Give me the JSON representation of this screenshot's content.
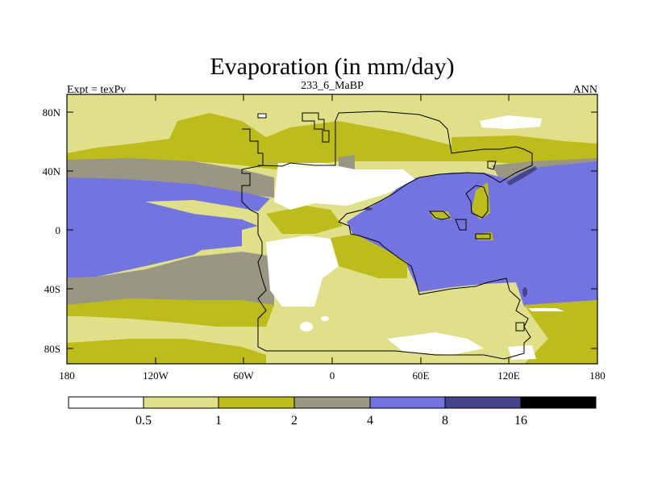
{
  "title": "Evaporation (in mm/day)",
  "subtitle_left": "Expt = texPv",
  "subtitle_center": "233_6_MaBP",
  "subtitle_right": "ANN",
  "y_ticks": [
    "80N",
    "40N",
    "0",
    "40S",
    "80S"
  ],
  "x_ticks": [
    "180",
    "120W",
    "60W",
    "0",
    "60E",
    "120E",
    "180"
  ],
  "colorbar": {
    "labels": [
      "0.5",
      "1",
      "2",
      "4",
      "8",
      "16"
    ],
    "colors": [
      "#ffffff",
      "#e0e08a",
      "#bcbc1c",
      "#999684",
      "#7474e0",
      "#45458c",
      "#000000"
    ]
  },
  "chart_data": {
    "type": "heatmap",
    "variable": "Evaporation",
    "units": "mm/day",
    "levels": [
      0.5,
      1,
      2,
      4,
      8,
      16
    ],
    "lon_range": [
      -180,
      180
    ],
    "lat_range": [
      -90,
      90
    ]
  }
}
